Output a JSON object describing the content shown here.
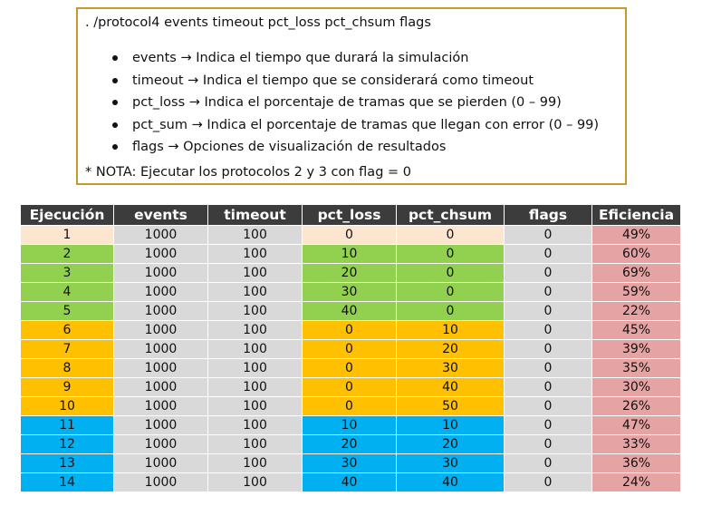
{
  "command": ". /protocol4 events timeout pct_loss pct_chsum flags",
  "bullets": [
    "events → Indica el tiempo que durará la simulación",
    "timeout → Indica el tiempo que se considerará como timeout",
    "pct_loss → Indica el porcentaje de tramas que se pierden (0 – 99)",
    "pct_sum → Indica el porcentaje de tramas que llegan con error (0 – 99)",
    "flags → Opciones de visualización de resultados"
  ],
  "note": "* NOTA: Ejecutar los protocolos 2 y 3 con flag = 0",
  "colors": {
    "header": "#3c3c3c",
    "peach": "#fde6cf",
    "green": "#92d050",
    "orange": "#ffc000",
    "blue": "#00b0f0",
    "gray": "#d9d9d9",
    "pink": "#e6a3a3",
    "box_border": "#c39a2e"
  },
  "table": {
    "headers": [
      "Ejecución",
      "events",
      "timeout",
      "pct_loss",
      "pct_chsum",
      "flags",
      "Eficiencia"
    ],
    "rows": [
      {
        "group": "peach",
        "cells": [
          "1",
          "1000",
          "100",
          "0",
          "0",
          "0",
          "49%"
        ]
      },
      {
        "group": "green",
        "cells": [
          "2",
          "1000",
          "100",
          "10",
          "0",
          "0",
          "60%"
        ]
      },
      {
        "group": "green",
        "cells": [
          "3",
          "1000",
          "100",
          "20",
          "0",
          "0",
          "69%"
        ]
      },
      {
        "group": "green",
        "cells": [
          "4",
          "1000",
          "100",
          "30",
          "0",
          "0",
          "59%"
        ]
      },
      {
        "group": "green",
        "cells": [
          "5",
          "1000",
          "100",
          "40",
          "0",
          "0",
          "22%"
        ]
      },
      {
        "group": "orange",
        "cells": [
          "6",
          "1000",
          "100",
          "0",
          "10",
          "0",
          "45%"
        ]
      },
      {
        "group": "orange",
        "cells": [
          "7",
          "1000",
          "100",
          "0",
          "20",
          "0",
          "39%"
        ]
      },
      {
        "group": "orange",
        "cells": [
          "8",
          "1000",
          "100",
          "0",
          "30",
          "0",
          "35%"
        ]
      },
      {
        "group": "orange",
        "cells": [
          "9",
          "1000",
          "100",
          "0",
          "40",
          "0",
          "30%"
        ]
      },
      {
        "group": "orange",
        "cells": [
          "10",
          "1000",
          "100",
          "0",
          "50",
          "0",
          "26%"
        ]
      },
      {
        "group": "blue",
        "cells": [
          "11",
          "1000",
          "100",
          "10",
          "10",
          "0",
          "47%"
        ]
      },
      {
        "group": "blue",
        "cells": [
          "12",
          "1000",
          "100",
          "20",
          "20",
          "0",
          "33%"
        ]
      },
      {
        "group": "blue",
        "cells": [
          "13",
          "1000",
          "100",
          "30",
          "30",
          "0",
          "36%"
        ]
      },
      {
        "group": "blue",
        "cells": [
          "14",
          "1000",
          "100",
          "40",
          "40",
          "0",
          "24%"
        ]
      }
    ]
  }
}
